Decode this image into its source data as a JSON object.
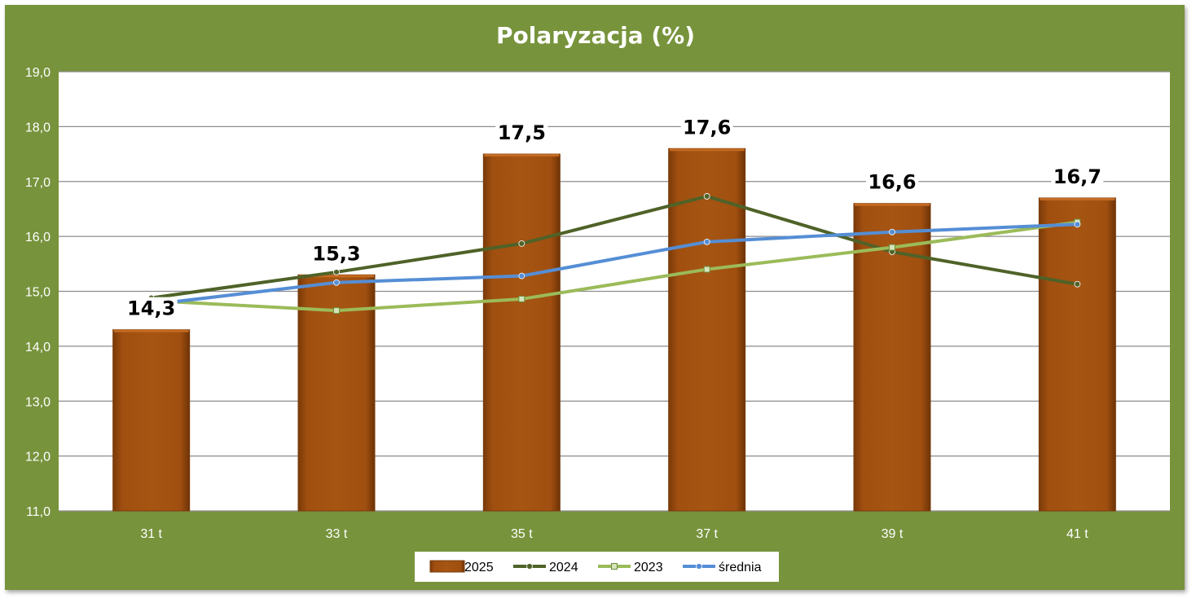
{
  "chart_data": {
    "type": "bar",
    "title": "Polaryzacja (%)",
    "categories": [
      "31 t",
      "33 t",
      "35 t",
      "37 t",
      "39 t",
      "41 t"
    ],
    "ylim": [
      11.0,
      19.0
    ],
    "yticks": [
      "11,0",
      "12,0",
      "13,0",
      "14,0",
      "15,0",
      "16,0",
      "17,0",
      "18,0",
      "19,0"
    ],
    "grid": true,
    "legend_position": "bottom",
    "series": [
      {
        "name": "2025",
        "kind": "bar",
        "color": "#a04f10",
        "values": [
          14.3,
          15.3,
          17.5,
          17.6,
          16.6,
          16.7
        ],
        "labels": [
          "14,3",
          "15,3",
          "17,5",
          "17,6",
          "16,6",
          "16,7"
        ]
      },
      {
        "name": "2024",
        "kind": "line",
        "color": "#4f6228",
        "marker": "circle",
        "values": [
          14.88,
          15.35,
          15.87,
          16.73,
          15.72,
          15.13
        ]
      },
      {
        "name": "2023",
        "kind": "line",
        "color": "#9bbb59",
        "marker": "square",
        "values": [
          14.83,
          14.65,
          14.86,
          15.4,
          15.8,
          16.26
        ]
      },
      {
        "name": "średnia",
        "kind": "line",
        "color": "#558ed5",
        "marker": "circle",
        "values": [
          14.76,
          15.16,
          15.28,
          15.9,
          16.08,
          16.22
        ]
      }
    ]
  }
}
